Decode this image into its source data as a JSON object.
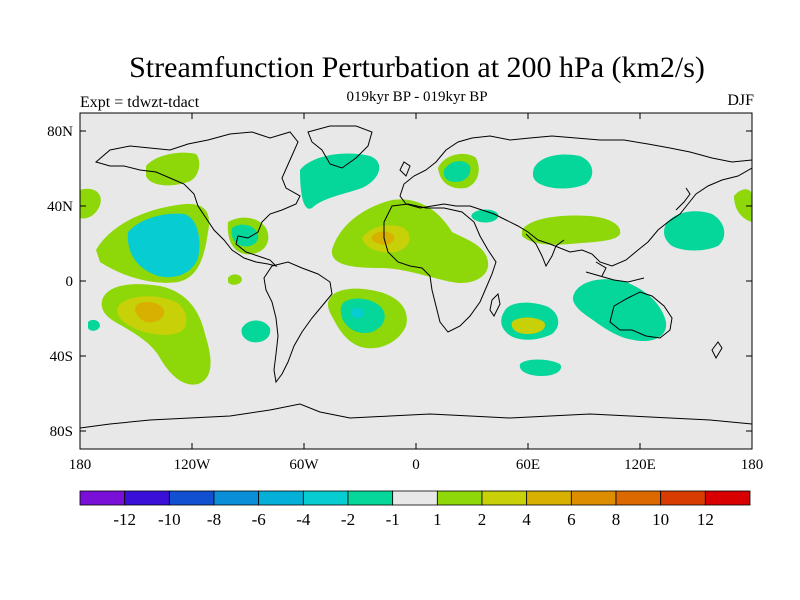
{
  "title": "Streamfunction Perturbation at 200 hPa (km2/s)",
  "subtitle": "019kyr BP - 019kyr BP",
  "left_label": "Expt = tdwzt-tdact",
  "right_label": "DJF",
  "colors": {
    "background": "#e8e8e8",
    "coast": "#000000"
  },
  "axes": {
    "lat_ticks": [
      "80N",
      "40N",
      "0",
      "40S",
      "80S"
    ],
    "lon_ticks": [
      "180",
      "120W",
      "60W",
      "0",
      "60E",
      "120E",
      "180"
    ]
  },
  "colorbar": {
    "colors": [
      "#7a10d8",
      "#3a10d8",
      "#1150d0",
      "#0a8ed8",
      "#04b0d8",
      "#07ccd2",
      "#05d699",
      "#e8e8e8",
      "#8ed80a",
      "#c8d008",
      "#d8b000",
      "#dc8e00",
      "#dc6800",
      "#d83c00",
      "#d80000"
    ],
    "labels": [
      "-12",
      "-10",
      "-8",
      "-6",
      "-4",
      "-2",
      "-1",
      "1",
      "2",
      "4",
      "6",
      "8",
      "10",
      "12"
    ]
  },
  "shading": {
    "light_green": "#8ed80a",
    "teal": "#05d699",
    "cyan": "#07ccd2",
    "yellow": "#c8d008",
    "orange": "#d8b000"
  }
}
